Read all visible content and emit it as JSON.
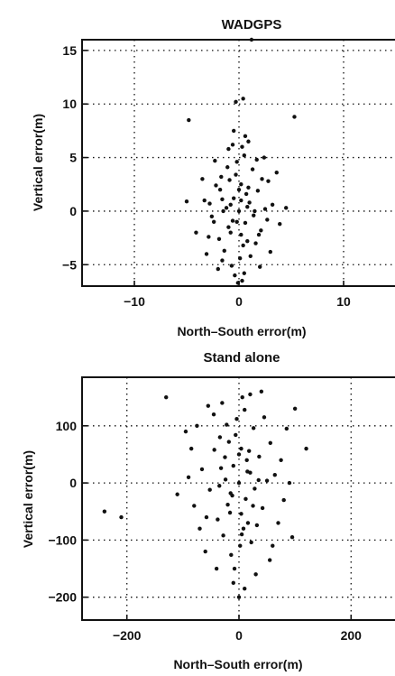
{
  "chart_data": [
    {
      "type": "scatter",
      "title": "WADGPS",
      "xlabel": "North–South error(m)",
      "ylabel": "Vertical error(m)",
      "xlim": [
        -15,
        15
      ],
      "ylim": [
        -7,
        16
      ],
      "xticks": [
        -10,
        0,
        10
      ],
      "xtick_labels": [
        "−10",
        "0",
        "10"
      ],
      "yticks": [
        -5,
        0,
        5,
        10,
        15
      ],
      "ytick_labels": [
        "−5",
        "0",
        "5",
        "10",
        "15"
      ],
      "grid": true,
      "series": [
        {
          "marker_color": "#111111",
          "points": [
            [
              0.0,
              0.0
            ],
            [
              -0.5,
              1.2
            ],
            [
              0.6,
              -1.1
            ],
            [
              0.2,
              2.5
            ],
            [
              -0.8,
              -2.0
            ],
            [
              1.0,
              0.8
            ],
            [
              -1.2,
              0.3
            ],
            [
              0.4,
              -3.2
            ],
            [
              -0.3,
              3.4
            ],
            [
              0.9,
              2.2
            ],
            [
              -1.0,
              -1.5
            ],
            [
              1.4,
              -0.4
            ],
            [
              -1.6,
              1.1
            ],
            [
              0.1,
              -4.4
            ],
            [
              -0.2,
              4.6
            ],
            [
              1.8,
              1.9
            ],
            [
              -1.9,
              -2.6
            ],
            [
              0.5,
              5.2
            ],
            [
              -0.7,
              -5.1
            ],
            [
              2.1,
              -1.8
            ],
            [
              -2.2,
              2.4
            ],
            [
              1.3,
              3.9
            ],
            [
              -1.4,
              -3.7
            ],
            [
              0.8,
              -2.8
            ],
            [
              -0.9,
              2.9
            ],
            [
              2.5,
              0.2
            ],
            [
              -2.6,
              -0.5
            ],
            [
              0.3,
              6.0
            ],
            [
              -0.4,
              -6.0
            ],
            [
              1.6,
              -3.0
            ],
            [
              -1.7,
              3.2
            ],
            [
              0.7,
              1.6
            ],
            [
              -0.6,
              -0.9
            ],
            [
              0.0,
              2.0
            ],
            [
              0.2,
              -2.2
            ],
            [
              -1.1,
              4.1
            ],
            [
              1.1,
              -4.2
            ],
            [
              2.8,
              2.8
            ],
            [
              -2.9,
              -2.4
            ],
            [
              3.2,
              0.6
            ],
            [
              -3.3,
              1.0
            ],
            [
              0.6,
              7.0
            ],
            [
              -0.5,
              7.5
            ],
            [
              0.4,
              10.5
            ],
            [
              -0.3,
              10.2
            ],
            [
              -4.8,
              8.5
            ],
            [
              5.3,
              8.8
            ],
            [
              1.2,
              16.0
            ],
            [
              3.9,
              -1.2
            ],
            [
              -4.1,
              -2.0
            ],
            [
              4.5,
              0.3
            ],
            [
              -5.0,
              0.9
            ],
            [
              3.6,
              3.6
            ],
            [
              -3.5,
              3.0
            ],
            [
              2.4,
              5.0
            ],
            [
              -2.3,
              4.7
            ],
            [
              2.0,
              -5.2
            ],
            [
              -2.0,
              -5.4
            ],
            [
              3.0,
              -3.8
            ],
            [
              -3.1,
              -4.0
            ],
            [
              0.9,
              6.5
            ],
            [
              -1.0,
              5.8
            ],
            [
              0.3,
              -6.5
            ],
            [
              -0.1,
              -6.7
            ],
            [
              1.5,
              0.0
            ],
            [
              -1.5,
              0.0
            ],
            [
              0.8,
              0.4
            ],
            [
              -0.8,
              0.6
            ],
            [
              0.2,
              1.0
            ],
            [
              -0.2,
              -1.0
            ],
            [
              1.9,
              -2.2
            ],
            [
              -1.8,
              2.0
            ],
            [
              2.2,
              3.0
            ],
            [
              -2.4,
              -1.0
            ],
            [
              0.5,
              -5.8
            ],
            [
              -0.6,
              6.2
            ],
            [
              1.7,
              4.8
            ],
            [
              -1.6,
              -4.6
            ],
            [
              2.7,
              -0.8
            ],
            [
              -2.8,
              0.7
            ]
          ]
        }
      ]
    },
    {
      "type": "scatter",
      "title": "Stand alone",
      "xlabel": "North–South error(m)",
      "ylabel": "Vertical error(m)",
      "xlim": [
        -280,
        280
      ],
      "ylim": [
        -240,
        185
      ],
      "xticks": [
        -200,
        0,
        200
      ],
      "xtick_labels": [
        "−200",
        "0",
        "200"
      ],
      "yticks": [
        -200,
        -100,
        0,
        100
      ],
      "ytick_labels": [
        "−200",
        "−100",
        "0",
        "100"
      ],
      "grid": true,
      "series": [
        {
          "marker_color": "#111111",
          "points": [
            [
              0,
              0
            ],
            [
              -10,
              30
            ],
            [
              12,
              -28
            ],
            [
              4,
              60
            ],
            [
              -16,
              -52
            ],
            [
              20,
              18
            ],
            [
              -24,
              6
            ],
            [
              8,
              -80
            ],
            [
              -6,
              84
            ],
            [
              18,
              56
            ],
            [
              -20,
              -38
            ],
            [
              28,
              -10
            ],
            [
              -32,
              26
            ],
            [
              2,
              -110
            ],
            [
              -4,
              112
            ],
            [
              36,
              46
            ],
            [
              -38,
              -64
            ],
            [
              10,
              128
            ],
            [
              -14,
              -126
            ],
            [
              42,
              -44
            ],
            [
              -44,
              58
            ],
            [
              26,
              96
            ],
            [
              -28,
              -92
            ],
            [
              16,
              -70
            ],
            [
              -18,
              72
            ],
            [
              50,
              4
            ],
            [
              -52,
              -12
            ],
            [
              6,
              150
            ],
            [
              -8,
              -150
            ],
            [
              32,
              -74
            ],
            [
              -34,
              80
            ],
            [
              14,
              40
            ],
            [
              -12,
              -22
            ],
            [
              0,
              50
            ],
            [
              4,
              -54
            ],
            [
              -22,
              102
            ],
            [
              22,
              -104
            ],
            [
              56,
              70
            ],
            [
              -58,
              -60
            ],
            [
              64,
              14
            ],
            [
              -66,
              24
            ],
            [
              -85,
              60
            ],
            [
              -80,
              -40
            ],
            [
              -75,
              100
            ],
            [
              75,
              40
            ],
            [
              80,
              -30
            ],
            [
              85,
              95
            ],
            [
              100,
              130
            ],
            [
              40,
              160
            ],
            [
              20,
              155
            ],
            [
              -30,
              140
            ],
            [
              10,
              -185
            ],
            [
              0,
              -200
            ],
            [
              -10,
              -175
            ],
            [
              30,
              -160
            ],
            [
              -40,
              -150
            ],
            [
              60,
              -110
            ],
            [
              -60,
              -120
            ],
            [
              70,
              -70
            ],
            [
              -70,
              -80
            ],
            [
              45,
              115
            ],
            [
              -45,
              120
            ],
            [
              90,
              0
            ],
            [
              -90,
              10
            ],
            [
              -240,
              -50
            ],
            [
              -130,
              150
            ],
            [
              -210,
              -60
            ],
            [
              120,
              60
            ],
            [
              -110,
              -20
            ],
            [
              95,
              -95
            ],
            [
              -95,
              90
            ],
            [
              55,
              -135
            ],
            [
              -55,
              135
            ],
            [
              35,
              5
            ],
            [
              -35,
              -5
            ],
            [
              25,
              -40
            ],
            [
              -25,
              45
            ],
            [
              15,
              20
            ],
            [
              -15,
              -18
            ],
            [
              5,
              -90
            ]
          ]
        }
      ]
    }
  ]
}
